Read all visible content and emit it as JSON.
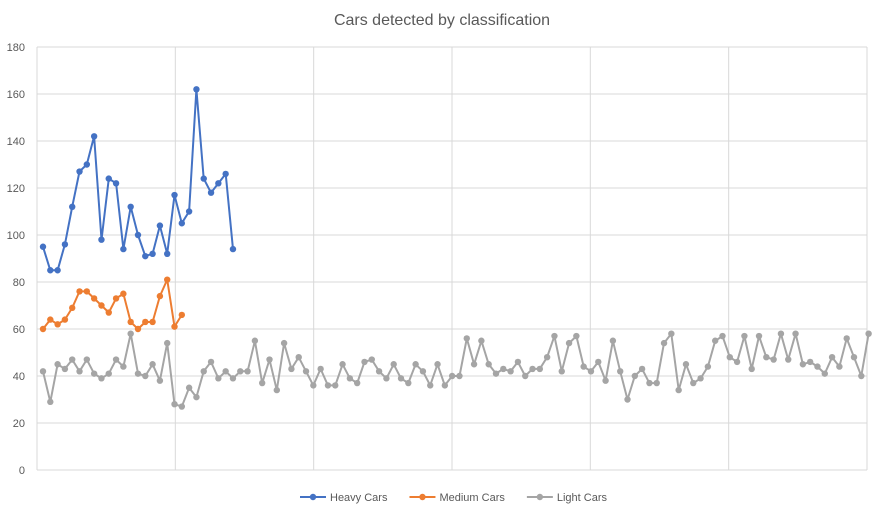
{
  "chart_data": {
    "type": "line",
    "title": "Cars detected by classification",
    "xlabel": "",
    "ylabel": "",
    "ylim": [
      0,
      180
    ],
    "yticks": [
      0,
      20,
      40,
      60,
      80,
      100,
      120,
      140,
      160,
      180
    ],
    "x_count": 114,
    "x_grid_every": 20,
    "grid": true,
    "legend_position": "bottom",
    "series": [
      {
        "name": "Heavy Cars",
        "color": "#4472c4",
        "values": [
          95,
          85,
          85,
          96,
          112,
          127,
          130,
          142,
          98,
          124,
          122,
          94,
          112,
          100,
          91,
          92,
          104,
          92,
          117,
          105,
          110,
          162,
          124,
          118,
          122,
          126,
          94
        ]
      },
      {
        "name": "Medium Cars",
        "color": "#ed7d31",
        "values": [
          60,
          64,
          62,
          64,
          69,
          76,
          76,
          73,
          70,
          67,
          73,
          75,
          63,
          60,
          63,
          63,
          74,
          81,
          61,
          66
        ]
      },
      {
        "name": "Light Cars",
        "color": "#a5a5a5",
        "values": [
          42,
          29,
          45,
          43,
          47,
          42,
          47,
          41,
          39,
          41,
          47,
          44,
          58,
          41,
          40,
          45,
          38,
          54,
          28,
          27,
          35,
          31,
          42,
          46,
          39,
          42,
          39,
          42,
          42,
          55,
          37,
          47,
          34,
          54,
          43,
          48,
          42,
          36,
          43,
          36,
          36,
          45,
          39,
          37,
          46,
          47,
          42,
          39,
          45,
          39,
          37,
          45,
          42,
          36,
          45,
          36,
          40,
          40,
          56,
          45,
          55,
          45,
          41,
          43,
          42,
          46,
          40,
          43,
          43,
          48,
          57,
          42,
          54,
          57,
          44,
          42,
          46,
          38,
          55,
          42,
          30,
          40,
          43,
          37,
          37,
          54,
          58,
          34,
          45,
          37,
          39,
          44,
          55,
          57,
          48,
          46,
          57,
          43,
          57,
          48,
          47,
          58,
          47,
          58,
          45,
          46,
          44,
          41,
          48,
          44,
          56,
          48,
          40,
          58
        ]
      }
    ]
  }
}
